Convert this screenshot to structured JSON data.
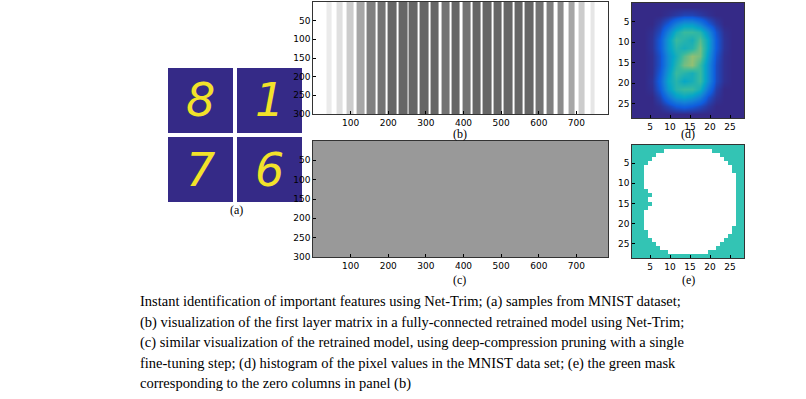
{
  "chart_data": [
    {
      "type": "image",
      "title": "(a)",
      "digits": [
        "8",
        "1",
        "7",
        "6"
      ]
    },
    {
      "type": "heatmap",
      "title": "(b)",
      "xlim": [
        0,
        784
      ],
      "ylim": [
        300,
        0
      ],
      "xticks": [
        100,
        200,
        300,
        400,
        500,
        600,
        700
      ],
      "yticks": [
        50,
        100,
        150,
        200,
        250,
        300
      ],
      "zlim": [
        0,
        1
      ],
      "stripe_start": [
        36,
        62,
        89,
        116,
        143,
        171,
        199,
        227,
        255,
        283,
        312,
        341,
        368,
        397,
        424,
        451,
        479,
        507,
        535,
        563,
        592,
        620,
        649,
        678,
        707,
        737
      ],
      "stripe_end": [
        48,
        78,
        107,
        136,
        165,
        193,
        222,
        250,
        278,
        306,
        334,
        362,
        390,
        418,
        446,
        474,
        502,
        530,
        558,
        585,
        613,
        640,
        667,
        694,
        721,
        747
      ],
      "stripe_density": [
        0.08,
        0.12,
        0.2,
        0.35,
        0.5,
        0.55,
        0.6,
        0.6,
        0.6,
        0.6,
        0.6,
        0.55,
        0.6,
        0.55,
        0.6,
        0.6,
        0.6,
        0.6,
        0.6,
        0.6,
        0.55,
        0.5,
        0.45,
        0.35,
        0.2,
        0.1
      ]
    },
    {
      "type": "heatmap",
      "title": "(c)",
      "xlim": [
        0,
        784
      ],
      "ylim": [
        300,
        0
      ],
      "xticks": [
        100,
        200,
        300,
        400,
        500,
        600,
        700
      ],
      "yticks": [
        50,
        100,
        150,
        200,
        250,
        300
      ],
      "zlim": [
        0,
        1
      ],
      "z": [
        [
          0.4
        ]
      ]
    },
    {
      "type": "heatmap",
      "title": "(d)",
      "xlim": [
        0.5,
        28.5
      ],
      "ylim": [
        28.5,
        0.5
      ],
      "xticks": [
        5,
        10,
        15,
        20,
        25
      ],
      "yticks": [
        5,
        10,
        15,
        20,
        25
      ],
      "zlim": [
        0,
        1
      ],
      "x": [
        1.5,
        3.5,
        5.5,
        7.5,
        9.5,
        11.5,
        13.5,
        15.5,
        17.5,
        19.5,
        21.5,
        23.5,
        25.5,
        27.5
      ],
      "y": [
        1.5,
        3.5,
        5.5,
        7.5,
        9.5,
        11.5,
        13.5,
        15.5,
        17.5,
        19.5,
        21.5,
        23.5,
        25.5,
        27.5
      ],
      "z": [
        [
          0,
          0,
          0,
          0,
          0,
          0,
          0,
          0,
          0,
          0,
          0,
          0,
          0,
          0
        ],
        [
          0,
          0,
          0,
          0,
          0.02,
          0.05,
          0.08,
          0.08,
          0.05,
          0.02,
          0,
          0,
          0,
          0
        ],
        [
          0,
          0,
          0,
          0.05,
          0.15,
          0.3,
          0.4,
          0.4,
          0.3,
          0.15,
          0.05,
          0,
          0,
          0
        ],
        [
          0,
          0,
          0.02,
          0.1,
          0.3,
          0.5,
          0.6,
          0.6,
          0.55,
          0.35,
          0.12,
          0.02,
          0,
          0
        ],
        [
          0,
          0,
          0.03,
          0.15,
          0.4,
          0.6,
          0.55,
          0.5,
          0.65,
          0.45,
          0.15,
          0.03,
          0,
          0
        ],
        [
          0,
          0,
          0.03,
          0.15,
          0.4,
          0.55,
          0.5,
          0.55,
          0.7,
          0.45,
          0.15,
          0.03,
          0,
          0
        ],
        [
          0,
          0,
          0.02,
          0.12,
          0.35,
          0.5,
          0.65,
          0.75,
          0.7,
          0.4,
          0.12,
          0.02,
          0,
          0
        ],
        [
          0,
          0,
          0.02,
          0.12,
          0.35,
          0.55,
          0.7,
          0.75,
          0.6,
          0.35,
          0.1,
          0.02,
          0,
          0
        ],
        [
          0,
          0,
          0.02,
          0.15,
          0.4,
          0.6,
          0.55,
          0.5,
          0.6,
          0.35,
          0.1,
          0.02,
          0,
          0
        ],
        [
          0,
          0,
          0.03,
          0.18,
          0.45,
          0.55,
          0.45,
          0.5,
          0.6,
          0.35,
          0.1,
          0.02,
          0,
          0
        ],
        [
          0,
          0,
          0.02,
          0.15,
          0.4,
          0.55,
          0.6,
          0.6,
          0.5,
          0.25,
          0.06,
          0,
          0,
          0
        ],
        [
          0,
          0,
          0,
          0.08,
          0.25,
          0.4,
          0.45,
          0.4,
          0.3,
          0.12,
          0.03,
          0,
          0,
          0
        ],
        [
          0,
          0,
          0,
          0.02,
          0.08,
          0.15,
          0.18,
          0.15,
          0.1,
          0.04,
          0,
          0,
          0,
          0
        ],
        [
          0,
          0,
          0,
          0,
          0,
          0,
          0,
          0,
          0,
          0,
          0,
          0,
          0,
          0
        ]
      ]
    },
    {
      "type": "heatmap",
      "title": "(e)",
      "xlim": [
        0.5,
        28.5
      ],
      "ylim": [
        28.5,
        0.5
      ],
      "xticks": [
        5,
        10,
        15,
        20,
        25
      ],
      "yticks": [
        5,
        10,
        15,
        20,
        25
      ],
      "zlim": [
        0,
        1
      ],
      "color": "#33c4b4",
      "x": [
        1,
        2,
        3,
        4,
        5,
        6,
        7,
        8,
        9,
        10,
        11,
        12,
        13,
        14,
        15,
        16,
        17,
        18,
        19,
        20,
        21,
        22,
        23,
        24,
        25,
        26,
        27,
        28
      ],
      "y": [
        1,
        2,
        3,
        4,
        5,
        6,
        7,
        8,
        9,
        10,
        11,
        12,
        13,
        14,
        15,
        16,
        17,
        18,
        19,
        20,
        21,
        22,
        23,
        24,
        25,
        26,
        27,
        28
      ],
      "white_from": [
        null,
        9,
        7,
        6,
        5,
        4,
        4,
        4,
        4,
        4,
        4,
        5,
        6,
        5,
        6,
        5,
        4,
        4,
        4,
        4,
        4,
        5,
        5,
        6,
        7,
        8,
        10,
        null
      ],
      "white_to": [
        null,
        20,
        22,
        23,
        24,
        25,
        25,
        26,
        26,
        26,
        26,
        26,
        26,
        26,
        26,
        26,
        26,
        26,
        26,
        26,
        25,
        25,
        24,
        23,
        22,
        21,
        19,
        null
      ]
    }
  ],
  "caption": [
    "Instant identification of important features using Net-Trim; (a) samples from MNIST dataset;",
    "(b) visualization of the first layer matrix in a fully-connected retrained model using Net-Trim;",
    "(c) similar visualization of the retrained model, using deep-compression pruning with a single",
    "fine-tuning step; (d) histogram of the pixel values in the MNIST data set; (e) the green mask",
    "corresponding to the zero columns in panel (b)"
  ]
}
